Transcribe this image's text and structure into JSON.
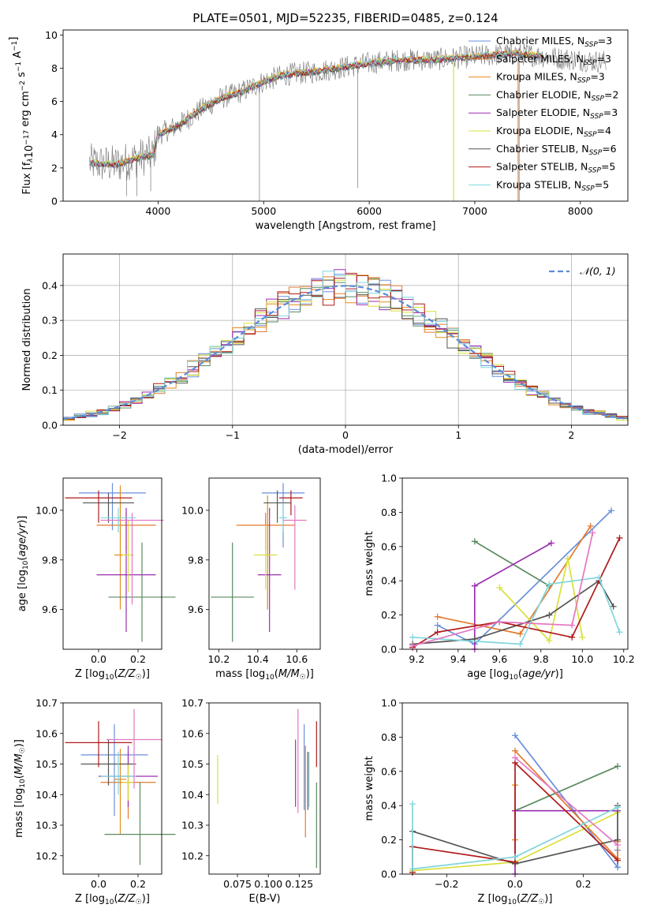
{
  "figure": {
    "title": "PLATE=0501, MJD=52235, FIBERID=0485, z=0.124"
  },
  "legend": {
    "entries": [
      {
        "text": "Chabrier MILES, N",
        "sub": "SSP",
        "tail": "=3",
        "color": "#6a8fdb"
      },
      {
        "text": "Salpeter MILES, N",
        "sub": "SSP",
        "tail": "=3",
        "color": "#e37a2f"
      },
      {
        "text": "Kroupa MILES, N",
        "sub": "SSP",
        "tail": "=3",
        "color": "#e58a1c"
      },
      {
        "text": "Chabrier ELODIE, N",
        "sub": "SSP",
        "tail": "=2",
        "color": "#5a8a5f"
      },
      {
        "text": "Salpeter ELODIE, N",
        "sub": "SSP",
        "tail": "=3",
        "color": "#9a2fb0"
      },
      {
        "text": "Kroupa ELODIE, N",
        "sub": "SSP",
        "tail": "=4",
        "color": "#d9e03a"
      },
      {
        "text": "Chabrier STELIB, N",
        "sub": "SSP",
        "tail": "=6",
        "color": "#555555"
      },
      {
        "text": "Salpeter STELIB, N",
        "sub": "SSP",
        "tail": "=5",
        "color": "#b01a1a"
      },
      {
        "text": "Kroupa STELIB, N",
        "sub": "SSP",
        "tail": "=5",
        "color": "#7fd6dc"
      }
    ]
  },
  "chart_data": [
    {
      "id": "spectrum",
      "type": "line",
      "title": "PLATE=0501, MJD=52235, FIBERID=0485, z=0.124",
      "xlabel": "wavelength [Angstrom, rest frame]",
      "ylabel": "Flux [f_λ 10^-17 erg cm^-2 s^-1 A^-1]",
      "xlim": [
        3100,
        8450
      ],
      "ylim": [
        0,
        10.3
      ],
      "xticks": [
        4000,
        5000,
        6000,
        7000,
        8000
      ],
      "yticks": [
        0,
        2,
        4,
        6,
        8,
        10
      ],
      "continuum": [
        [
          3350,
          2.3
        ],
        [
          3600,
          2.2
        ],
        [
          3800,
          2.6
        ],
        [
          3950,
          2.8
        ],
        [
          4000,
          4.0
        ],
        [
          4200,
          4.6
        ],
        [
          4400,
          5.5
        ],
        [
          4600,
          6.2
        ],
        [
          4800,
          6.6
        ],
        [
          5000,
          7.2
        ],
        [
          5200,
          7.6
        ],
        [
          5500,
          7.8
        ],
        [
          5800,
          8.1
        ],
        [
          6000,
          8.3
        ],
        [
          6300,
          8.5
        ],
        [
          6600,
          8.5
        ],
        [
          7000,
          8.7
        ],
        [
          7400,
          8.9
        ],
        [
          7800,
          8.6
        ],
        [
          8200,
          8.4
        ]
      ],
      "grid": false
    },
    {
      "id": "residuals",
      "type": "line",
      "xlabel": "(data-model)/error",
      "ylabel": "Normed distribution",
      "xlim": [
        -2.5,
        2.5
      ],
      "ylim": [
        0,
        0.49
      ],
      "xticks": [
        -2,
        -1,
        0,
        1,
        2
      ],
      "yticks": [
        0.0,
        0.1,
        0.2,
        0.3,
        0.4
      ],
      "legend": "𝒩(0, 1)",
      "gaussian": {
        "mean": 0,
        "sigma": 1
      },
      "grid": true
    },
    {
      "id": "age-vs-Z",
      "type": "scatter",
      "xlabel": "Z [log10(Z/Z☉)]",
      "ylabel": "age [log10(age/yr)]",
      "xlim": [
        -0.18,
        0.32
      ],
      "ylim": [
        9.44,
        10.13
      ],
      "xticks": [
        0.0,
        0.2
      ],
      "yticks": [
        9.6,
        9.8,
        10.0
      ],
      "points": [
        {
          "x": 0.07,
          "y": 10.07,
          "xerr": 0.17,
          "yerr_lo": 0.15,
          "yerr_hi": 0.04,
          "color": "#6a8fdb"
        },
        {
          "x": 0.14,
          "y": 9.94,
          "xerr": 0.15,
          "yerr_lo": 0.1,
          "yerr_hi": 0.05,
          "color": "#e37a2f"
        },
        {
          "x": 0.11,
          "y": 9.82,
          "xerr": 0.03,
          "yerr_lo": 0.22,
          "yerr_hi": 0.28,
          "color": "#e58a1c"
        },
        {
          "x": 0.22,
          "y": 9.65,
          "xerr": 0.17,
          "yerr_lo": 0.18,
          "yerr_hi": 0.22,
          "color": "#5a8a5f"
        },
        {
          "x": 0.14,
          "y": 9.74,
          "xerr": 0.15,
          "yerr_lo": 0.23,
          "yerr_hi": 0.27,
          "color": "#9a2fb0"
        },
        {
          "x": 0.15,
          "y": 9.82,
          "xerr": 0.03,
          "yerr_lo": 0.15,
          "yerr_hi": 0.14,
          "color": "#d9e03a"
        },
        {
          "x": 0.05,
          "y": 10.03,
          "xerr": 0.13,
          "yerr_lo": 0.08,
          "yerr_hi": 0.04,
          "color": "#555555"
        },
        {
          "x": 0.0,
          "y": 10.05,
          "xerr": 0.17,
          "yerr_lo": 0.1,
          "yerr_hi": 0.03,
          "color": "#b01a1a"
        },
        {
          "x": 0.1,
          "y": 9.97,
          "xerr": 0.09,
          "yerr_lo": 0.06,
          "yerr_hi": 0.04,
          "color": "#7fd6dc"
        },
        {
          "x": 0.17,
          "y": 9.96,
          "xerr": 0.16,
          "yerr_lo": 0.34,
          "yerr_hi": 0.03,
          "color": "#e377c2"
        }
      ]
    },
    {
      "id": "age-vs-mass",
      "type": "scatter",
      "xlabel": "mass [log10(M/M☉)]",
      "ylabel": "",
      "xlim": [
        10.15,
        10.72
      ],
      "ylim": [
        9.44,
        10.13
      ],
      "xticks": [
        10.2,
        10.4,
        10.6
      ],
      "yticks": [
        9.6,
        9.8,
        10.0
      ],
      "points": [
        {
          "x": 10.53,
          "y": 10.07,
          "xerr": 0.11,
          "yerr_lo": 0.22,
          "yerr_hi": 0.04,
          "color": "#6a8fdb"
        },
        {
          "x": 10.44,
          "y": 9.94,
          "xerr": 0.15,
          "yerr_lo": 0.1,
          "yerr_hi": 0.05,
          "color": "#e37a2f"
        },
        {
          "x": 10.45,
          "y": 9.82,
          "xerr": 0.01,
          "yerr_lo": 0.22,
          "yerr_hi": 0.24,
          "color": "#e58a1c"
        },
        {
          "x": 10.27,
          "y": 9.65,
          "xerr": 0.11,
          "yerr_lo": 0.18,
          "yerr_hi": 0.22,
          "color": "#5a8a5f"
        },
        {
          "x": 10.46,
          "y": 9.74,
          "xerr": 0.06,
          "yerr_lo": 0.23,
          "yerr_hi": 0.27,
          "color": "#9a2fb0"
        },
        {
          "x": 10.44,
          "y": 9.82,
          "xerr": 0.06,
          "yerr_lo": 0.14,
          "yerr_hi": 0.12,
          "color": "#d9e03a"
        },
        {
          "x": 10.5,
          "y": 10.03,
          "xerr": 0.07,
          "yerr_lo": 0.08,
          "yerr_hi": 0.05,
          "color": "#555555"
        },
        {
          "x": 10.57,
          "y": 10.05,
          "xerr": 0.06,
          "yerr_lo": 0.07,
          "yerr_hi": 0.03,
          "color": "#b01a1a"
        },
        {
          "x": 10.53,
          "y": 9.97,
          "xerr": 0.02,
          "yerr_lo": 0.06,
          "yerr_hi": 0.06,
          "color": "#7fd6dc"
        },
        {
          "x": 10.59,
          "y": 9.96,
          "xerr": 0.06,
          "yerr_lo": 0.28,
          "yerr_hi": 0.06,
          "color": "#e377c2"
        }
      ]
    },
    {
      "id": "weight-vs-age",
      "type": "line",
      "xlabel": "age [log10(age/yr)]",
      "ylabel": "mass weight",
      "xlim": [
        9.13,
        10.22
      ],
      "ylim": [
        0,
        1.0
      ],
      "xticks": [
        9.2,
        9.4,
        9.6,
        9.8,
        10.0,
        10.2
      ],
      "yticks": [
        0.0,
        0.2,
        0.4,
        0.6,
        0.8,
        1.0
      ],
      "series": [
        {
          "color": "#6a8fdb",
          "points": [
            [
              9.3,
              0.14
            ],
            [
              9.48,
              0.03
            ],
            [
              10.14,
              0.81
            ]
          ]
        },
        {
          "color": "#e37a2f",
          "points": [
            [
              9.3,
              0.19
            ],
            [
              9.7,
              0.09
            ],
            [
              10.04,
              0.72
            ]
          ]
        },
        {
          "color": "#5a8a5f",
          "points": [
            [
              9.48,
              0.63
            ],
            [
              9.84,
              0.37
            ]
          ]
        },
        {
          "color": "#9a2fb0",
          "points": [
            [
              9.48,
              0.0
            ],
            [
              9.48,
              0.37
            ],
            [
              9.85,
              0.62
            ]
          ]
        },
        {
          "color": "#d9e03a",
          "points": [
            [
              9.6,
              0.36
            ],
            [
              9.84,
              0.05
            ],
            [
              9.93,
              0.53
            ],
            [
              10.0,
              0.07
            ]
          ]
        },
        {
          "color": "#555555",
          "points": [
            [
              9.18,
              0.03
            ],
            [
              9.48,
              0.06
            ],
            [
              9.84,
              0.2
            ],
            [
              10.08,
              0.4
            ],
            [
              10.15,
              0.25
            ]
          ]
        },
        {
          "color": "#b01a1a",
          "points": [
            [
              9.18,
              0.01
            ],
            [
              9.3,
              0.1
            ],
            [
              9.6,
              0.16
            ],
            [
              9.95,
              0.07
            ],
            [
              10.18,
              0.65
            ]
          ]
        },
        {
          "color": "#7fd6dc",
          "points": [
            [
              9.18,
              0.07
            ],
            [
              9.7,
              0.03
            ],
            [
              9.84,
              0.38
            ],
            [
              10.08,
              0.42
            ],
            [
              10.18,
              0.1
            ]
          ]
        },
        {
          "color": "#e377c2",
          "points": [
            [
              9.18,
              0.02
            ],
            [
              9.6,
              0.16
            ],
            [
              9.95,
              0.14
            ],
            [
              10.05,
              0.68
            ]
          ]
        }
      ]
    },
    {
      "id": "mass-vs-Z",
      "type": "scatter",
      "xlabel": "Z [log10(Z/Z☉)]",
      "ylabel": "mass [log10(M/M☉)]",
      "xlim": [
        -0.18,
        0.32
      ],
      "ylim": [
        10.14,
        10.7
      ],
      "xticks": [
        0.0,
        0.2
      ],
      "yticks": [
        10.2,
        10.3,
        10.4,
        10.5,
        10.6,
        10.7
      ],
      "points": [
        {
          "x": 0.08,
          "y": 10.53,
          "xerr": 0.17,
          "yerr_lo": 0.2,
          "yerr_hi": 0.1,
          "color": "#6a8fdb"
        },
        {
          "x": 0.15,
          "y": 10.44,
          "xerr": 0.14,
          "yerr_lo": 0.12,
          "yerr_hi": 0.1,
          "color": "#e37a2f"
        },
        {
          "x": 0.11,
          "y": 10.45,
          "xerr": 0.03,
          "yerr_lo": 0.18,
          "yerr_hi": 0.1,
          "color": "#e58a1c"
        },
        {
          "x": 0.21,
          "y": 10.27,
          "xerr": 0.18,
          "yerr_lo": 0.1,
          "yerr_hi": 0.17,
          "color": "#5a8a5f"
        },
        {
          "x": 0.15,
          "y": 10.46,
          "xerr": 0.15,
          "yerr_lo": 0.1,
          "yerr_hi": 0.1,
          "color": "#9a2fb0"
        },
        {
          "x": 0.15,
          "y": 10.44,
          "xerr": 0.03,
          "yerr_lo": 0.06,
          "yerr_hi": 0.06,
          "color": "#d9e03a"
        },
        {
          "x": 0.05,
          "y": 10.5,
          "xerr": 0.14,
          "yerr_lo": 0.07,
          "yerr_hi": 0.08,
          "color": "#555555"
        },
        {
          "x": 0.0,
          "y": 10.57,
          "xerr": 0.17,
          "yerr_lo": 0.08,
          "yerr_hi": 0.07,
          "color": "#b01a1a"
        },
        {
          "x": 0.1,
          "y": 10.46,
          "xerr": 0.09,
          "yerr_lo": 0.06,
          "yerr_hi": 0.08,
          "color": "#7fd6dc"
        },
        {
          "x": 0.18,
          "y": 10.58,
          "xerr": 0.14,
          "yerr_lo": 0.16,
          "yerr_hi": 0.1,
          "color": "#e377c2"
        }
      ]
    },
    {
      "id": "mass-vs-ebv",
      "type": "scatter",
      "xlabel": "E(B-V)",
      "ylabel": "",
      "xlim": [
        0.052,
        0.142
      ],
      "ylim": [
        10.14,
        10.7
      ],
      "xticks": [
        0.075,
        0.1,
        0.125
      ],
      "yticks": [
        10.2,
        10.3,
        10.4,
        10.5,
        10.6,
        10.7
      ],
      "points": [
        {
          "x": 0.129,
          "y": 10.5,
          "yerr_lo": 0.15,
          "yerr_hi": 0.13,
          "color": "#6a8fdb"
        },
        {
          "x": 0.13,
          "y": 10.43,
          "yerr_lo": 0.17,
          "yerr_hi": 0.13,
          "color": "#e37a2f"
        },
        {
          "x": 0.059,
          "y": 10.45,
          "yerr_lo": 0.08,
          "yerr_hi": 0.08,
          "color": "#d9e03a"
        },
        {
          "x": 0.139,
          "y": 10.3,
          "yerr_lo": 0.14,
          "yerr_hi": 0.14,
          "color": "#5a8a5f"
        },
        {
          "x": 0.122,
          "y": 10.46,
          "yerr_lo": 0.1,
          "yerr_hi": 0.12,
          "color": "#9a2fb0"
        },
        {
          "x": 0.132,
          "y": 10.45,
          "yerr_lo": 0.1,
          "yerr_hi": 0.09,
          "color": "#555555"
        },
        {
          "x": 0.139,
          "y": 10.56,
          "yerr_lo": 0.07,
          "yerr_hi": 0.08,
          "color": "#b01a1a"
        },
        {
          "x": 0.133,
          "y": 10.45,
          "yerr_lo": 0.09,
          "yerr_hi": 0.09,
          "color": "#7fd6dc"
        },
        {
          "x": 0.124,
          "y": 10.58,
          "yerr_lo": 0.24,
          "yerr_hi": 0.1,
          "color": "#e377c2"
        }
      ]
    },
    {
      "id": "weight-vs-Z",
      "type": "line",
      "xlabel": "Z [log10(Z/Z☉)]",
      "ylabel": "mass weight",
      "xlim": [
        -0.33,
        0.33
      ],
      "ylim": [
        0,
        1.0
      ],
      "xticks": [
        -0.2,
        0.0,
        0.2
      ],
      "yticks": [
        0.0,
        0.2,
        0.4,
        0.6,
        0.8,
        1.0
      ],
      "series": [
        {
          "color": "#6a8fdb",
          "points": [
            [
              0.0,
              0.81
            ],
            [
              0.3,
              0.04
            ],
            [
              0.3,
              0.14
            ]
          ]
        },
        {
          "color": "#e37a2f",
          "points": [
            [
              0.0,
              0.72
            ],
            [
              0.3,
              0.09
            ],
            [
              0.3,
              0.19
            ]
          ]
        },
        {
          "color": "#e58a1c",
          "points": [
            [
              0.0,
              0.52
            ],
            [
              0.0,
              0.2
            ]
          ]
        },
        {
          "color": "#5a8a5f",
          "points": [
            [
              0.0,
              0.37
            ],
            [
              0.3,
              0.63
            ]
          ]
        },
        {
          "color": "#9a2fb0",
          "points": [
            [
              0.0,
              0.0
            ],
            [
              0.0,
              0.37
            ],
            [
              0.3,
              0.37
            ]
          ]
        },
        {
          "color": "#d9e03a",
          "points": [
            [
              -0.3,
              0.02
            ],
            [
              0.0,
              0.07
            ],
            [
              0.3,
              0.36
            ]
          ]
        },
        {
          "color": "#555555",
          "points": [
            [
              -0.3,
              0.25
            ],
            [
              0.0,
              0.06
            ],
            [
              0.3,
              0.2
            ],
            [
              0.3,
              0.4
            ]
          ]
        },
        {
          "color": "#b01a1a",
          "points": [
            [
              -0.3,
              0.01
            ],
            [
              -0.3,
              0.16
            ],
            [
              0.0,
              0.07
            ],
            [
              0.0,
              0.65
            ],
            [
              0.3,
              0.08
            ]
          ]
        },
        {
          "color": "#7fd6dc",
          "points": [
            [
              -0.3,
              0.41
            ],
            [
              -0.3,
              0.03
            ],
            [
              0.0,
              0.1
            ],
            [
              0.3,
              0.39
            ]
          ]
        },
        {
          "color": "#e377c2",
          "points": [
            [
              0.0,
              0.68
            ],
            [
              0.3,
              0.17
            ]
          ]
        }
      ]
    }
  ]
}
